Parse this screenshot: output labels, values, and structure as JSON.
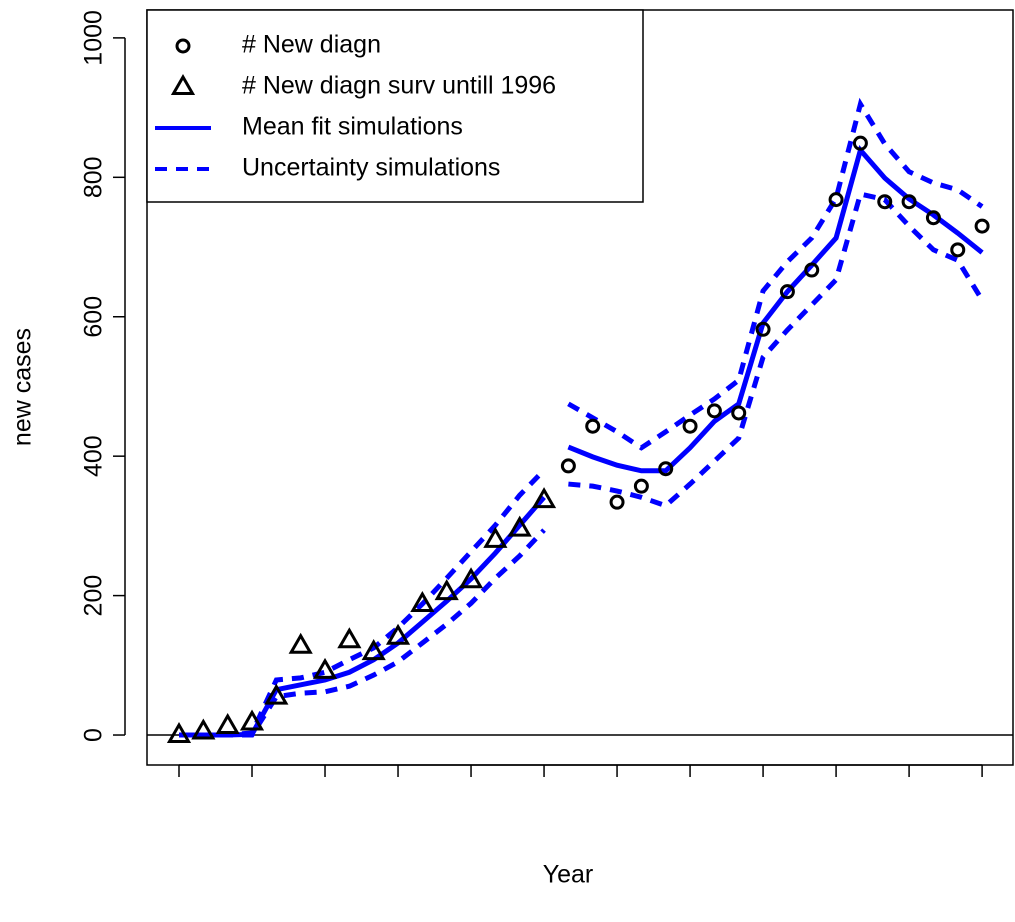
{
  "chart_data": {
    "type": "line",
    "x_label": "Year",
    "y_label": "new cases",
    "x": [
      0,
      1,
      2,
      3,
      4,
      5,
      6,
      7,
      8,
      9,
      10,
      11,
      12,
      13,
      14,
      15,
      16,
      17,
      18,
      19,
      20,
      21,
      22,
      23,
      24,
      25,
      26,
      27,
      28,
      29,
      30,
      31,
      32,
      33
    ],
    "xlim": [
      -1.315,
      34.27
    ],
    "xticks": [
      0,
      3,
      6,
      9,
      12,
      15,
      18,
      21,
      24,
      27,
      30,
      33
    ],
    "ylim": [
      -43,
      1040
    ],
    "yticks": [
      0,
      200,
      400,
      600,
      800,
      1000
    ],
    "hline": 0,
    "legend": "top-left",
    "series": [
      {
        "name": "# New diagn",
        "style": "points",
        "marker": "circle",
        "color": "#000000",
        "values": [
          null,
          null,
          null,
          null,
          null,
          null,
          null,
          null,
          null,
          null,
          null,
          null,
          null,
          null,
          null,
          null,
          386,
          443,
          334,
          357,
          382,
          443,
          465,
          462,
          582,
          636,
          667,
          768,
          849,
          765,
          765,
          742,
          696,
          730
        ]
      },
      {
        "name": "# New diagn surv untill 1996",
        "style": "points",
        "marker": "triangle",
        "color": "#000000",
        "values": [
          0,
          5,
          13,
          18,
          55,
          128,
          92,
          136,
          119,
          141,
          188,
          205,
          222,
          280,
          296,
          337,
          null,
          null,
          null,
          null,
          null,
          null,
          null,
          null,
          null,
          null,
          null,
          null,
          null,
          null,
          null,
          null,
          null,
          null
        ]
      },
      {
        "name": "Mean fit simulations",
        "style": "solid",
        "color": "#0000ff",
        "values": [
          0,
          0,
          0,
          1,
          65,
          72,
          79,
          90,
          108,
          132,
          162,
          192,
          224,
          261,
          301,
          341,
          null,
          null,
          null,
          null,
          null,
          null,
          null,
          null,
          null,
          null,
          null,
          null,
          null,
          null,
          null,
          null,
          null,
          null
        ]
      },
      {
        "name": "Uncertainty simulations",
        "style": "dashed",
        "color": "#0000ff",
        "values": [
          0,
          0,
          0,
          3,
          79,
          82,
          90,
          108,
          125,
          154,
          188,
          225,
          263,
          301,
          344,
          380,
          null,
          null,
          null,
          null,
          null,
          null,
          null,
          null,
          null,
          null,
          null,
          null,
          null,
          null,
          null,
          null,
          null,
          null
        ]
      },
      {
        "style": "solid",
        "color": "#0000ff",
        "values": [
          null,
          null,
          null,
          null,
          null,
          null,
          null,
          null,
          null,
          null,
          null,
          null,
          null,
          null,
          null,
          null,
          413,
          399,
          387,
          379,
          379,
          412,
          450,
          475,
          591,
          636,
          674,
          713,
          839,
          799,
          769,
          746,
          720,
          692
        ]
      },
      {
        "style": "dashed",
        "color": "#0000ff",
        "values": [
          0,
          0,
          0,
          0,
          55,
          60,
          62,
          70,
          86,
          105,
          132,
          159,
          189,
          225,
          257,
          294,
          null,
          null,
          null,
          null,
          null,
          null,
          null,
          null,
          null,
          null,
          null,
          null,
          null,
          null,
          null,
          null,
          null,
          null
        ]
      },
      {
        "style": "dashed",
        "color": "#0000ff",
        "values": [
          null,
          null,
          null,
          null,
          null,
          null,
          null,
          null,
          null,
          null,
          null,
          null,
          null,
          null,
          null,
          null,
          475,
          455,
          435,
          412,
          435,
          459,
          482,
          509,
          637,
          679,
          713,
          770,
          905,
          848,
          808,
          792,
          782,
          758
        ]
      },
      {
        "style": "dashed",
        "color": "#0000ff",
        "values": [
          null,
          null,
          null,
          null,
          null,
          null,
          null,
          null,
          null,
          null,
          null,
          null,
          null,
          null,
          null,
          null,
          360,
          357,
          350,
          341,
          329,
          360,
          393,
          426,
          542,
          581,
          617,
          653,
          776,
          768,
          730,
          696,
          681,
          624
        ]
      }
    ]
  }
}
